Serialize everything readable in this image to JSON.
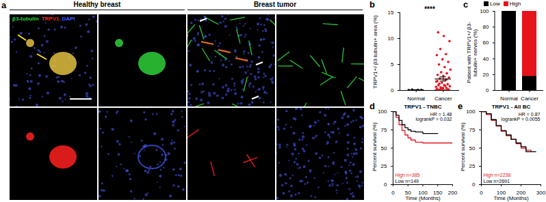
{
  "image_panel": {
    "panel": "a",
    "groups": [
      {
        "title": "Healthy breast"
      },
      {
        "title": "Breast tumor"
      }
    ],
    "channels": [
      {
        "name": "β3-tubulin",
        "color": "#2fd03a"
      },
      {
        "name": "TRPV1",
        "color": "#ff2020"
      },
      {
        "name": "DAPI",
        "color": "#4a5cff"
      }
    ]
  },
  "chart_data": [
    {
      "type": "scatter",
      "panel": "b",
      "ylabel": "TRPV1+/ β3-tubulin+ area (%)",
      "categories": [
        "Normal",
        "Cancer"
      ],
      "colors": [
        "#000000",
        "#e8141c"
      ],
      "values": [
        [
          0.05,
          0.1,
          0.15,
          0.08
        ],
        [
          0,
          0,
          0.1,
          0.2,
          0.3,
          0.3,
          0.5,
          0.6,
          0.8,
          1,
          1,
          1.2,
          1.5,
          1.7,
          2,
          2.3,
          2.5,
          2.8,
          3,
          3.3,
          3.5,
          4,
          4.5,
          5,
          5.5,
          6,
          6.8,
          7,
          8,
          9.5,
          10.5,
          11.2,
          0.2,
          0.4,
          0.7,
          0.9,
          1.3,
          0.1,
          0.5,
          1.8,
          2.1,
          0.3
        ]
      ],
      "mean": [
        0.1,
        2.2
      ],
      "error": [
        0.03,
        0.4
      ],
      "annotation": "****",
      "ylim": [
        0,
        15
      ],
      "yticks": [
        0,
        5,
        10,
        15
      ]
    },
    {
      "type": "bar",
      "panel": "c",
      "stacked": true,
      "legend": "top",
      "ylabel": "Patient with TRPV1+/ β3-tubulin+ nerves (%)",
      "categories": [
        "Normal",
        "Cancer"
      ],
      "series": [
        {
          "name": "Low",
          "color": "#000000",
          "values": [
            100,
            18
          ]
        },
        {
          "name": "High",
          "color": "#e8141c",
          "values": [
            0,
            82
          ]
        }
      ],
      "ylim": [
        0,
        100
      ],
      "yticks": [
        0,
        20,
        40,
        60,
        80,
        100
      ]
    },
    {
      "type": "line",
      "panel": "d",
      "title": "TRPV1 - TNBC",
      "line_style": "step",
      "annotations": [
        "HR = 1.48",
        "logrankP = 0.032"
      ],
      "legend": "bottom left",
      "xlabel": "Time (Months)",
      "ylabel": "Percent survival (%)",
      "x": [
        0,
        10,
        20,
        30,
        40,
        50,
        60,
        75,
        100,
        125,
        150,
        175,
        200
      ],
      "series": [
        {
          "name": "High n=385",
          "color": "#e8141c",
          "values": [
            100,
            92,
            82,
            74,
            68,
            64,
            61,
            58,
            57,
            57,
            57,
            57,
            57
          ]
        },
        {
          "name": "Low n=149",
          "color": "#000000",
          "values": [
            100,
            95,
            88,
            82,
            78,
            75,
            73,
            72,
            70,
            70,
            70,
            null,
            null
          ]
        }
      ],
      "xlim": [
        0,
        200
      ],
      "xticks": [
        0,
        50,
        100,
        150,
        200
      ],
      "ylim": [
        0,
        100
      ],
      "yticks": [
        0,
        25,
        50,
        75,
        100
      ]
    },
    {
      "type": "line",
      "panel": "e",
      "title": "TRPV1 - All BC",
      "line_style": "step",
      "annotations": [
        "HR = 0.87",
        "logrankP = 0.0055"
      ],
      "legend": "bottom left",
      "xlabel": "Time (Months)",
      "ylabel": "Percent survival (%)",
      "x": [
        0,
        25,
        50,
        75,
        100,
        125,
        150,
        175,
        200,
        225,
        250,
        275
      ],
      "series": [
        {
          "name": "High n=2238",
          "color": "#e8141c",
          "values": [
            100,
            96,
            88,
            80,
            73,
            67,
            62,
            56,
            50,
            47,
            45,
            null
          ]
        },
        {
          "name": "Low n=2691",
          "color": "#000000",
          "values": [
            100,
            97,
            89,
            81,
            74,
            68,
            62,
            57,
            52,
            45,
            45,
            45
          ]
        }
      ],
      "xlim": [
        0,
        300
      ],
      "xticks": [
        0,
        100,
        200,
        300
      ],
      "ylim": [
        0,
        100
      ],
      "yticks": [
        0,
        25,
        50,
        75,
        100
      ]
    }
  ]
}
